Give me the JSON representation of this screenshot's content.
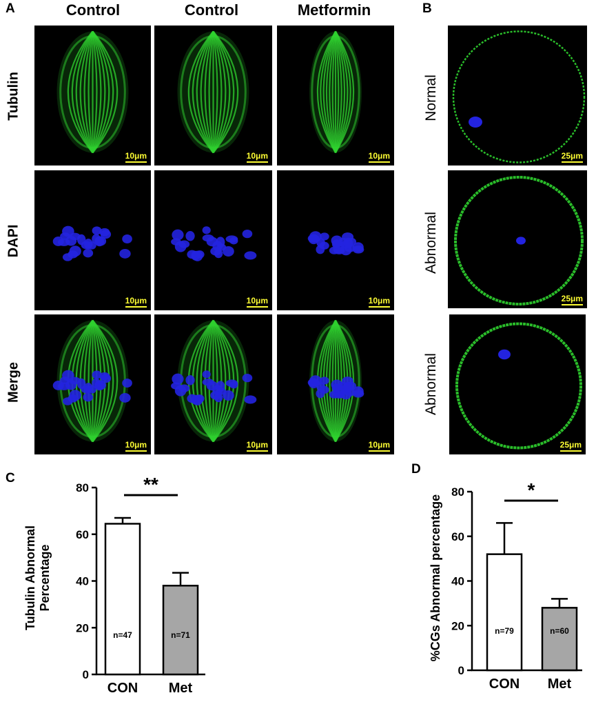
{
  "panels": {
    "a": "A",
    "b": "B",
    "c": "C",
    "d": "D"
  },
  "panel_a": {
    "columns": [
      "Control",
      "Control",
      "Metformin"
    ],
    "rows": [
      "Tubulin",
      "DAPI",
      "Merge"
    ],
    "scale_bar": "10μm",
    "colors": {
      "tubulin": "#2fd12f",
      "dapi": "#2323e0"
    }
  },
  "panel_b": {
    "rows": [
      "Normal",
      "Abnormal",
      "Abnormal"
    ],
    "scale_bar": "25μm"
  },
  "chart_data": [
    {
      "type": "bar",
      "panel": "C",
      "categories": [
        "CON",
        "Met"
      ],
      "values": [
        64.5,
        38
      ],
      "errors": [
        2.5,
        5.5
      ],
      "n_labels": [
        "n=47",
        "n=71"
      ],
      "fills": [
        "#ffffff",
        "#a6a6a6"
      ],
      "ylabel": [
        "Tubulin Abnormal",
        "Percentage"
      ],
      "ylim": [
        0,
        80
      ],
      "yticks": [
        0,
        20,
        40,
        60,
        80
      ],
      "significance": "**"
    },
    {
      "type": "bar",
      "panel": "D",
      "categories": [
        "CON",
        "Met"
      ],
      "values": [
        52,
        28
      ],
      "errors": [
        14,
        4
      ],
      "n_labels": [
        "n=79",
        "n=60"
      ],
      "fills": [
        "#ffffff",
        "#a6a6a6"
      ],
      "ylabel": [
        "%CGs Abnormal percentage"
      ],
      "ylim": [
        0,
        80
      ],
      "yticks": [
        0,
        20,
        40,
        60,
        80
      ],
      "significance": "*"
    }
  ]
}
